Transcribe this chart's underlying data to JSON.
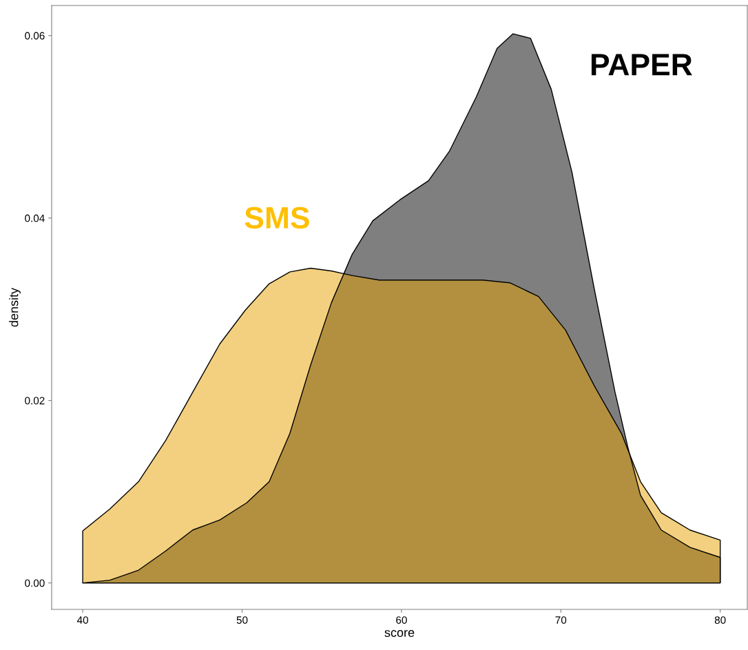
{
  "chart_data": {
    "type": "area",
    "xlabel": "score",
    "ylabel": "density",
    "xlim": [
      38.05,
      81.7
    ],
    "ylim": [
      -0.0029,
      0.0633
    ],
    "xticks": [
      40,
      50,
      60,
      70,
      80
    ],
    "yticks": [
      {
        "value": 0,
        "label": "0.00"
      },
      {
        "value": 0.02,
        "label": "0.02"
      },
      {
        "value": 0.04,
        "label": "0.04"
      },
      {
        "value": 0.06,
        "label": "0.06"
      }
    ],
    "grid": false,
    "legend": false,
    "series": [
      {
        "name": "PAPER",
        "color": "#000000",
        "x": [
          40,
          41.7,
          43.5,
          45.2,
          46.9,
          48.6,
          50.3,
          51.7,
          53.0,
          54.3,
          55.6,
          56.9,
          58.2,
          59.9,
          61.7,
          63.0,
          64.7,
          66.0,
          67.0,
          68.1,
          69.4,
          70.7,
          72.1,
          73.4,
          74.2,
          75.0,
          76.3,
          78.1,
          80
        ],
        "values": [
          0.0,
          0.0003,
          0.0014,
          0.0035,
          0.0058,
          0.0069,
          0.0088,
          0.0111,
          0.0164,
          0.0239,
          0.0307,
          0.036,
          0.0397,
          0.042,
          0.0441,
          0.0473,
          0.0533,
          0.0586,
          0.0602,
          0.0597,
          0.0541,
          0.045,
          0.0322,
          0.0209,
          0.0149,
          0.0096,
          0.0058,
          0.0039,
          0.0028
        ]
      },
      {
        "name": "SMS",
        "color": "#e7a100",
        "x": [
          40,
          41.7,
          43.5,
          45.2,
          46.9,
          48.6,
          50.2,
          51.7,
          53.0,
          54.3,
          55.6,
          56.9,
          58.6,
          60.8,
          62.9,
          65.1,
          66.8,
          68.6,
          70.3,
          72.1,
          73.8,
          75.0,
          76.3,
          78.1,
          80
        ],
        "values": [
          0.0057,
          0.0081,
          0.0111,
          0.0156,
          0.0209,
          0.0262,
          0.0299,
          0.0328,
          0.0341,
          0.0345,
          0.0342,
          0.0337,
          0.0332,
          0.0332,
          0.0332,
          0.0332,
          0.0329,
          0.0314,
          0.0277,
          0.0216,
          0.0164,
          0.0111,
          0.0077,
          0.0058,
          0.0047
        ]
      }
    ]
  }
}
